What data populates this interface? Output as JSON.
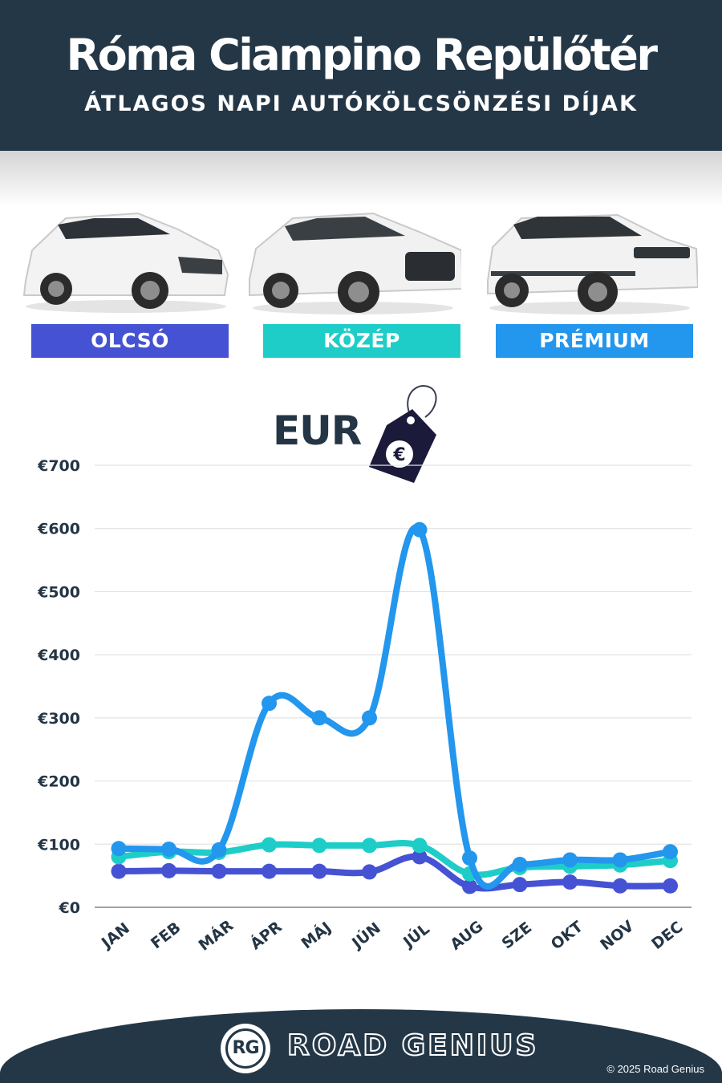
{
  "header": {
    "title": "Róma Ciampino Repülőtér",
    "subtitle": "ÁTLAGOS NAPI AUTÓKÖLCSÖNZÉSI DÍJAK"
  },
  "categories": [
    {
      "label": "OLCSÓ",
      "color": "#4652d4"
    },
    {
      "label": "KÖZÉP",
      "color": "#1fcdc8"
    },
    {
      "label": "PRÉMIUM",
      "color": "#2396ee"
    }
  ],
  "currency_label": "EUR",
  "price_tag_symbol": "€",
  "chart_data": {
    "type": "line",
    "categories": [
      "JAN",
      "FEB",
      "MÁR",
      "ÁPR",
      "MÁJ",
      "JÚN",
      "JÚL",
      "AUG",
      "SZE",
      "OKT",
      "NOV",
      "DEC"
    ],
    "series": [
      {
        "name": "OLCSÓ",
        "color": "#4652d4",
        "values": [
          57,
          58,
          57,
          57,
          57,
          56,
          80,
          33,
          36,
          40,
          34,
          34
        ]
      },
      {
        "name": "KÖZÉP",
        "color": "#1fcdc8",
        "values": [
          80,
          88,
          87,
          99,
          98,
          98,
          98,
          53,
          63,
          65,
          67,
          74
        ]
      },
      {
        "name": "PRÉMIUM",
        "color": "#2396ee",
        "values": [
          93,
          92,
          91,
          323,
          300,
          300,
          598,
          78,
          68,
          75,
          75,
          88
        ]
      }
    ],
    "yticks": [
      "€0",
      "€100",
      "€200",
      "€300",
      "€400",
      "€500",
      "€600",
      "€700"
    ],
    "ylim": [
      0,
      700
    ],
    "grid": true
  },
  "footer": {
    "logo_text": "RG",
    "brand": "ROAD GENIUS",
    "copyright": "© 2025 Road Genius"
  }
}
